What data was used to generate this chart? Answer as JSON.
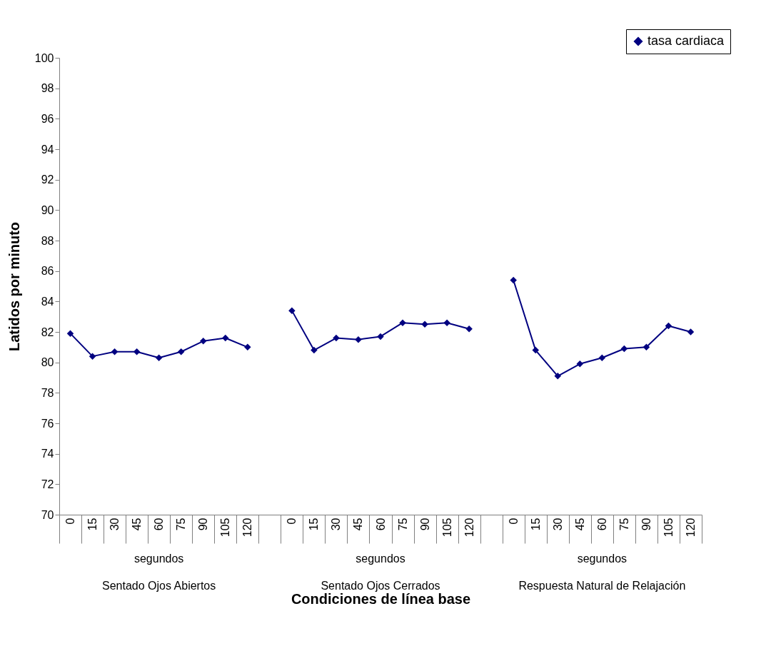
{
  "chart_data": {
    "type": "line",
    "xlabel": "Condiciones de línea base",
    "ylabel": "Latidos por minuto",
    "categories": [
      "0",
      "15",
      "30",
      "45",
      "60",
      "75",
      "90",
      "105",
      "120",
      null,
      "0",
      "15",
      "30",
      "45",
      "60",
      "75",
      "90",
      "105",
      "120",
      null,
      "0",
      "15",
      "30",
      "45",
      "60",
      "75",
      "90",
      "105",
      "120"
    ],
    "series": [
      {
        "name": "tasa cardiaca",
        "color": "#000080",
        "values": [
          81.9,
          80.4,
          80.7,
          80.7,
          80.3,
          80.7,
          81.4,
          81.6,
          81.0,
          null,
          83.4,
          80.8,
          81.6,
          81.5,
          81.7,
          82.6,
          82.5,
          82.6,
          82.2,
          null,
          85.4,
          80.8,
          79.1,
          79.9,
          80.3,
          80.9,
          81.0,
          82.4,
          82.0
        ]
      }
    ],
    "ylim": [
      70,
      100
    ],
    "yticks": [
      70,
      72,
      74,
      76,
      78,
      80,
      82,
      84,
      86,
      88,
      90,
      92,
      94,
      96,
      98,
      100
    ],
    "grid": false,
    "legend": "top right",
    "marker": "diamond",
    "line_style": "solid",
    "annotations": [
      "segundos",
      "segundos",
      "segundos",
      "Sentado Ojos Abiertos",
      "Sentado Ojos Cerrados",
      "Respuesta Natural de Relajación"
    ]
  }
}
